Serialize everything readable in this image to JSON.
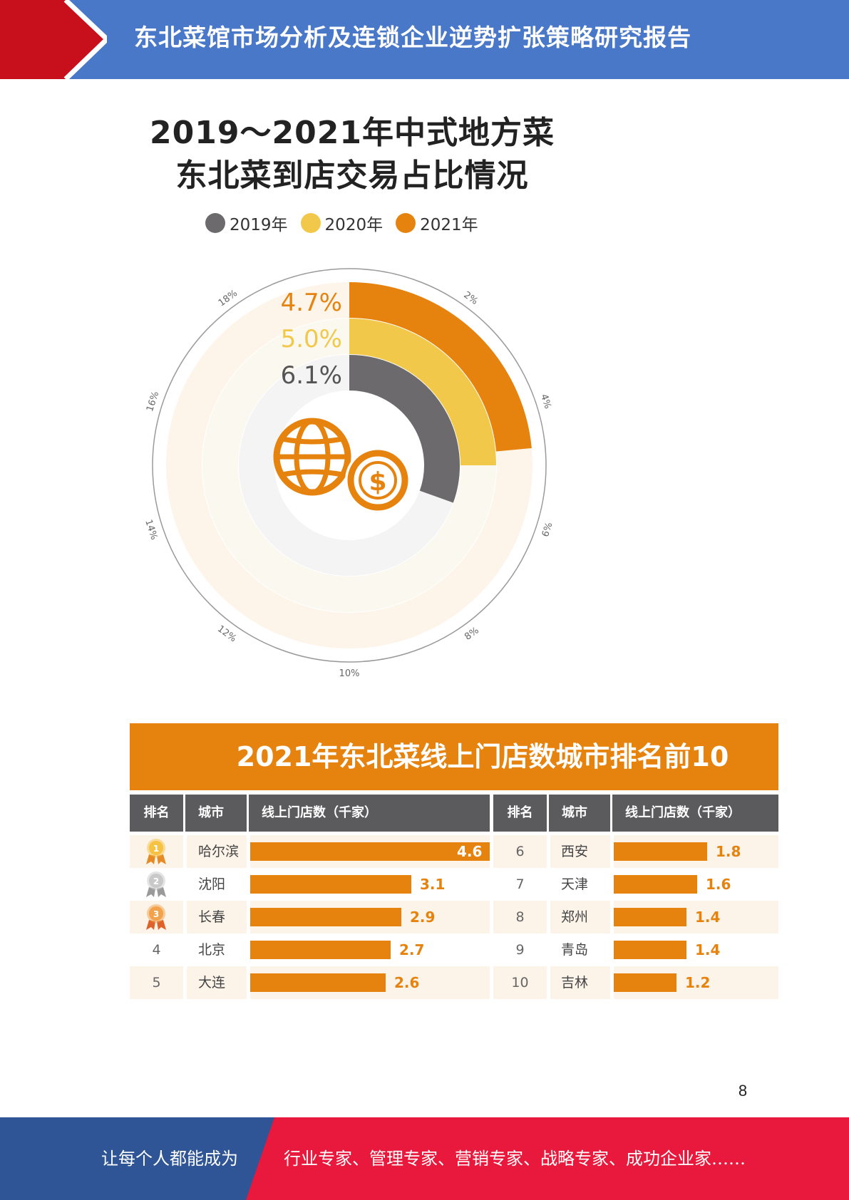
{
  "header": {
    "title": "东北菜馆市场分析及连锁企业逆势扩张策略研究报告"
  },
  "colors": {
    "header_blue": "#4a78c8",
    "header_red": "#c8101c",
    "orange": "#e6830f",
    "yellow": "#f2c84b",
    "gray": "#6d6a6d",
    "table_header": "#5b5a5c",
    "footer_blue": "#2f5597",
    "footer_red": "#e8193c"
  },
  "donut_chart": {
    "title_line1": "2019～2021年中式地方菜",
    "title_line2": "东北菜到店交易占比情况",
    "center_icon": "globe-dollar-icon",
    "legend": [
      "2019年",
      "2020年",
      "2021年"
    ],
    "chart_data": {
      "type": "radial-bar",
      "series": [
        {
          "name": "2019年",
          "value": 6.1,
          "label": "6.1%",
          "color": "#6d6a6d"
        },
        {
          "name": "2020年",
          "value": 5.0,
          "label": "5.0%",
          "color": "#f2c84b"
        },
        {
          "name": "2021年",
          "value": 4.7,
          "label": "4.7%",
          "color": "#e6830f"
        }
      ],
      "axis_range": [
        0,
        20
      ],
      "ticks": [
        {
          "value": 2,
          "label": "2%"
        },
        {
          "value": 4,
          "label": "4%"
        },
        {
          "value": 6,
          "label": "6%"
        },
        {
          "value": 8,
          "label": "8%"
        },
        {
          "value": 10,
          "label": "10%"
        },
        {
          "value": 12,
          "label": "12%"
        },
        {
          "value": 14,
          "label": "14%"
        },
        {
          "value": 16,
          "label": "16%"
        },
        {
          "value": 18,
          "label": "18%"
        }
      ]
    }
  },
  "ranking_table": {
    "title": "2021年东北菜线上门店数城市排名前10",
    "headers": {
      "rank": "排名",
      "city": "城市",
      "stores": "线上门店数（千家）"
    },
    "chart_data": {
      "type": "bar",
      "unit": "千家",
      "max": 4.6,
      "rows": [
        {
          "rank": "1",
          "city": "哈尔滨",
          "value": 4.6,
          "label": "4.6",
          "medal": "gold-medal-icon"
        },
        {
          "rank": "2",
          "city": "沈阳",
          "value": 3.1,
          "label": "3.1",
          "medal": "silver-medal-icon"
        },
        {
          "rank": "3",
          "city": "长春",
          "value": 2.9,
          "label": "2.9",
          "medal": "bronze-medal-icon"
        },
        {
          "rank": "4",
          "city": "北京",
          "value": 2.7,
          "label": "2.7"
        },
        {
          "rank": "5",
          "city": "大连",
          "value": 2.6,
          "label": "2.6"
        },
        {
          "rank": "6",
          "city": "西安",
          "value": 1.8,
          "label": "1.8"
        },
        {
          "rank": "7",
          "city": "天津",
          "value": 1.6,
          "label": "1.6"
        },
        {
          "rank": "8",
          "city": "郑州",
          "value": 1.4,
          "label": "1.4"
        },
        {
          "rank": "9",
          "city": "青岛",
          "value": 1.4,
          "label": "1.4"
        },
        {
          "rank": "10",
          "city": "吉林",
          "value": 1.2,
          "label": "1.2"
        }
      ]
    }
  },
  "page_number": "8",
  "footer": {
    "slogan_left": "让每个人都能成为",
    "slogan_right": "行业专家、管理专家、营销专家、战略专家、成功企业家……"
  }
}
